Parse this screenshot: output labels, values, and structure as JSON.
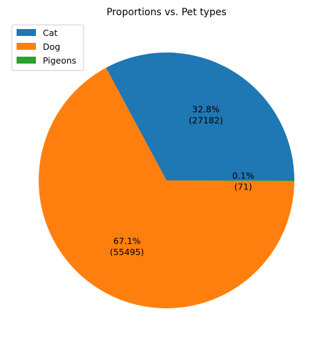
{
  "chart_data": {
    "type": "pie",
    "title": "Proportions vs. Pet types",
    "labels": [
      "Cat",
      "Dog",
      "Pigeons"
    ],
    "values": [
      27182,
      55495,
      71
    ],
    "percent_labels": [
      "32.8%",
      "67.1%",
      "0.1%"
    ],
    "count_labels": [
      "(27182)",
      "(55495)",
      "(71)"
    ],
    "colors": [
      "#1f77b4",
      "#ff7f0e",
      "#2ca02c"
    ],
    "start_angle_deg": 0,
    "direction": "counterclockwise",
    "legend_position": "top-left"
  }
}
